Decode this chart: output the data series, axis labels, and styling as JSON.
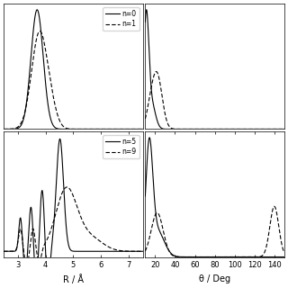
{
  "figure_size": [
    3.2,
    3.2
  ],
  "dpi": 100,
  "background_color": "#f0f0f0",
  "panels": {
    "top_left": {
      "legend": [
        {
          "label": "n=0",
          "ls": "solid"
        },
        {
          "label": "n=1",
          "ls": "dashed"
        }
      ],
      "xlim": [
        2.5,
        7.5
      ]
    },
    "top_right": {
      "xlim": [
        10,
        150
      ]
    },
    "bottom_left": {
      "xlabel": "R / Å",
      "legend": [
        {
          "label": "n=5",
          "ls": "solid"
        },
        {
          "label": "n=9",
          "ls": "dashed"
        }
      ],
      "xlim": [
        2.5,
        7.5
      ],
      "xticks": [
        3,
        4,
        5,
        6,
        7
      ]
    },
    "bottom_right": {
      "xlabel": "θ / Deg",
      "xlim": [
        10,
        150
      ],
      "xticks": [
        20,
        40,
        60,
        80,
        100,
        120,
        140
      ]
    }
  }
}
